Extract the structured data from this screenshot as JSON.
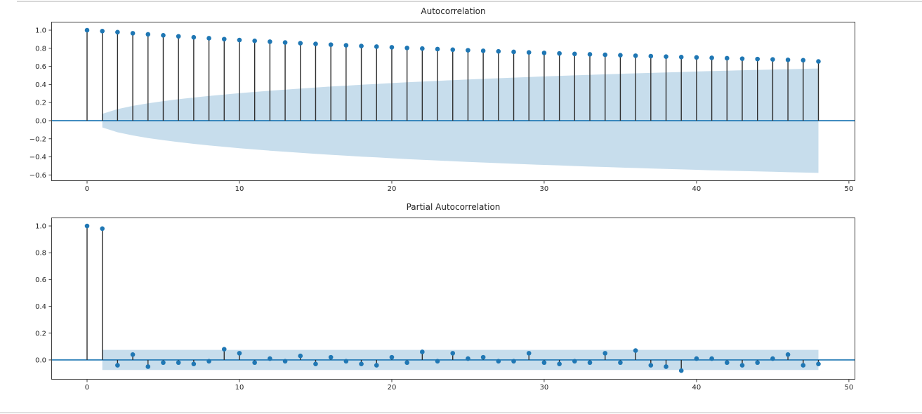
{
  "figure": {
    "background": "#ffffff",
    "top_rule_color": "#d8d8d8",
    "bottom_rule_color": "#e0e0e0"
  },
  "style": {
    "marker_color": "#1f77b4",
    "stem_color": "#2d2d2d",
    "zero_line_color": "#1f77b4",
    "band_color": "#1f77b4",
    "band_opacity": 0.25,
    "spine_color": "#3f3f3f",
    "tick_color": "#3f3f3f",
    "text_color": "#262626"
  },
  "chart_data": [
    {
      "type": "stem",
      "name": "acf",
      "title": "Autocorrelation",
      "x": [
        0,
        1,
        2,
        3,
        4,
        5,
        6,
        7,
        8,
        9,
        10,
        11,
        12,
        13,
        14,
        15,
        16,
        17,
        18,
        19,
        20,
        21,
        22,
        23,
        24,
        25,
        26,
        27,
        28,
        29,
        30,
        31,
        32,
        33,
        34,
        35,
        36,
        37,
        38,
        39,
        40,
        41,
        42,
        43,
        44,
        45,
        46,
        47,
        48
      ],
      "values": [
        1.0,
        0.99,
        0.978,
        0.966,
        0.954,
        0.943,
        0.932,
        0.921,
        0.911,
        0.901,
        0.891,
        0.882,
        0.873,
        0.864,
        0.856,
        0.848,
        0.84,
        0.833,
        0.825,
        0.818,
        0.811,
        0.804,
        0.797,
        0.791,
        0.784,
        0.778,
        0.772,
        0.766,
        0.76,
        0.754,
        0.749,
        0.743,
        0.738,
        0.733,
        0.728,
        0.723,
        0.718,
        0.713,
        0.708,
        0.703,
        0.699,
        0.694,
        0.69,
        0.685,
        0.681,
        0.677,
        0.672,
        0.668,
        0.655
      ],
      "conf_band": {
        "shape": "bartlett",
        "lag_start": 1,
        "lag_end": 48,
        "upper": [
          0.075,
          0.128,
          0.163,
          0.192,
          0.216,
          0.237,
          0.256,
          0.273,
          0.289,
          0.304,
          0.318,
          0.331,
          0.343,
          0.355,
          0.366,
          0.377,
          0.387,
          0.397,
          0.406,
          0.415,
          0.424,
          0.432,
          0.44,
          0.448,
          0.455,
          0.462,
          0.469,
          0.476,
          0.483,
          0.489,
          0.495,
          0.501,
          0.507,
          0.512,
          0.518,
          0.523,
          0.528,
          0.533,
          0.538,
          0.543,
          0.548,
          0.552,
          0.557,
          0.561,
          0.565,
          0.569,
          0.573,
          0.577
        ],
        "symmetric_about_zero": true
      },
      "xlim": [
        -2.35,
        50.42
      ],
      "ylim": [
        -0.667,
        1.093
      ],
      "xticks": {
        "values": [
          0,
          10,
          20,
          30,
          40,
          50
        ],
        "labels": [
          "0",
          "10",
          "20",
          "30",
          "40",
          "50"
        ]
      },
      "yticks": {
        "values": [
          1.0,
          0.8,
          0.6,
          0.4,
          0.2,
          0.0,
          -0.2,
          -0.4,
          -0.6
        ],
        "labels": [
          "1.0",
          "0.8",
          "0.6",
          "0.4",
          "0.2",
          "0.0",
          "−0.2",
          "−0.4",
          "−0.6"
        ]
      },
      "grid": false,
      "legend": null
    },
    {
      "type": "stem",
      "name": "pacf",
      "title": "Partial Autocorrelation",
      "x": [
        0,
        1,
        2,
        3,
        4,
        5,
        6,
        7,
        8,
        9,
        10,
        11,
        12,
        13,
        14,
        15,
        16,
        17,
        18,
        19,
        20,
        21,
        22,
        23,
        24,
        25,
        26,
        27,
        28,
        29,
        30,
        31,
        32,
        33,
        34,
        35,
        36,
        37,
        38,
        39,
        40,
        41,
        42,
        43,
        44,
        45,
        46,
        47,
        48
      ],
      "values": [
        1.0,
        0.98,
        -0.04,
        0.04,
        -0.05,
        -0.02,
        -0.02,
        -0.03,
        -0.01,
        0.08,
        0.05,
        -0.02,
        0.01,
        -0.01,
        0.03,
        -0.03,
        0.02,
        -0.01,
        -0.03,
        -0.04,
        0.02,
        -0.02,
        0.06,
        -0.01,
        0.05,
        0.01,
        0.02,
        -0.01,
        -0.01,
        0.05,
        -0.02,
        -0.03,
        -0.01,
        -0.02,
        0.05,
        -0.02,
        0.07,
        -0.04,
        -0.05,
        -0.08,
        0.01,
        0.01,
        -0.02,
        -0.04,
        -0.02,
        0.01,
        0.04,
        -0.04,
        -0.03
      ],
      "conf_band": {
        "shape": "constant",
        "lag_start": 1,
        "lag_end": 48,
        "constant": 0.075,
        "symmetric_about_zero": true
      },
      "xlim": [
        -2.35,
        50.42
      ],
      "ylim": [
        -0.147,
        1.063
      ],
      "xticks": {
        "values": [
          0,
          10,
          20,
          30,
          40,
          50
        ],
        "labels": [
          "0",
          "10",
          "20",
          "30",
          "40",
          "50"
        ]
      },
      "yticks": {
        "values": [
          1.0,
          0.8,
          0.6,
          0.4,
          0.2,
          0.0
        ],
        "labels": [
          "1.0",
          "0.8",
          "0.6",
          "0.4",
          "0.2",
          "0.0"
        ]
      },
      "grid": false,
      "legend": null
    }
  ]
}
